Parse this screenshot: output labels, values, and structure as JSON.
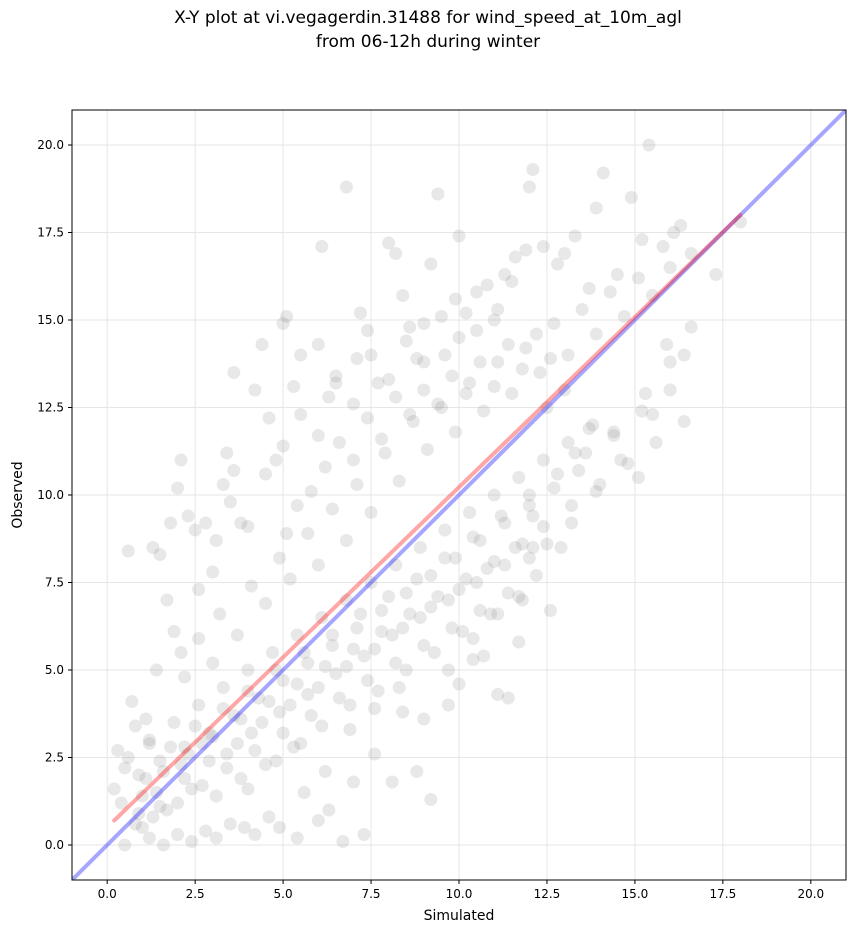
{
  "chart_data": {
    "type": "scatter",
    "title": "X-Y plot at vi.vegagerdin.31488 for wind_speed_at_10m_agl",
    "subtitle": "from 06-12h during winter",
    "xlabel": "Simulated",
    "ylabel": "Observed",
    "xlim": [
      -1.0,
      21.0
    ],
    "ylim": [
      -1.0,
      21.0
    ],
    "x_ticks": [
      0.0,
      2.5,
      5.0,
      7.5,
      10.0,
      12.5,
      15.0,
      17.5,
      20.0
    ],
    "y_ticks": [
      0.0,
      2.5,
      5.0,
      7.5,
      10.0,
      12.5,
      15.0,
      17.5,
      20.0
    ],
    "x_tick_labels": [
      "0.0",
      "2.5",
      "5.0",
      "7.5",
      "10.0",
      "12.5",
      "15.0",
      "17.5",
      "20.0"
    ],
    "y_tick_labels": [
      "0.0",
      "2.5",
      "5.0",
      "7.5",
      "10.0",
      "12.5",
      "15.0",
      "17.5",
      "20.0"
    ],
    "grid": true,
    "point_color": "#808080",
    "identity_line": {
      "from": [
        -1.0,
        -1.0
      ],
      "to": [
        21.0,
        21.0
      ],
      "color": "#0000ff"
    },
    "fit_line": {
      "from": [
        0.2,
        0.7
      ],
      "to": [
        18.0,
        18.0
      ],
      "color": "#ff0000"
    },
    "points": [
      [
        0.3,
        2.7
      ],
      [
        0.5,
        2.2
      ],
      [
        0.6,
        8.4
      ],
      [
        0.8,
        3.4
      ],
      [
        1.0,
        0.5
      ],
      [
        1.2,
        2.9
      ],
      [
        1.3,
        8.5
      ],
      [
        1.5,
        8.3
      ],
      [
        1.7,
        7.0
      ],
      [
        1.8,
        9.2
      ],
      [
        2.0,
        10.2
      ],
      [
        2.1,
        11.0
      ],
      [
        2.3,
        9.4
      ],
      [
        2.5,
        9.0
      ],
      [
        2.8,
        9.2
      ],
      [
        3.0,
        7.8
      ],
      [
        3.3,
        10.3
      ],
      [
        3.4,
        11.2
      ],
      [
        3.6,
        10.7
      ],
      [
        3.8,
        9.2
      ],
      [
        3.6,
        13.5
      ],
      [
        4.2,
        13.0
      ],
      [
        4.4,
        14.3
      ],
      [
        4.6,
        12.2
      ],
      [
        4.8,
        11.0
      ],
      [
        5.0,
        14.9
      ],
      [
        5.1,
        15.1
      ],
      [
        5.3,
        13.1
      ],
      [
        5.5,
        14.0
      ],
      [
        6.1,
        17.1
      ],
      [
        6.0,
        14.3
      ],
      [
        6.3,
        12.8
      ],
      [
        6.5,
        13.2
      ],
      [
        6.8,
        18.8
      ],
      [
        7.1,
        13.9
      ],
      [
        7.2,
        15.2
      ],
      [
        7.4,
        14.7
      ],
      [
        7.7,
        13.2
      ],
      [
        8.0,
        17.2
      ],
      [
        8.2,
        16.9
      ],
      [
        8.4,
        15.7
      ],
      [
        8.6,
        14.8
      ],
      [
        8.8,
        13.9
      ],
      [
        9.0,
        14.9
      ],
      [
        9.2,
        16.6
      ],
      [
        9.4,
        18.6
      ],
      [
        9.6,
        14.0
      ],
      [
        9.9,
        15.6
      ],
      [
        10.0,
        17.4
      ],
      [
        10.2,
        15.2
      ],
      [
        10.5,
        14.7
      ],
      [
        10.8,
        16.0
      ],
      [
        11.1,
        15.3
      ],
      [
        11.3,
        16.3
      ],
      [
        11.6,
        16.8
      ],
      [
        11.9,
        17.0
      ],
      [
        12.0,
        18.8
      ],
      [
        12.1,
        19.3
      ],
      [
        12.4,
        17.1
      ],
      [
        12.8,
        16.6
      ],
      [
        13.0,
        16.9
      ],
      [
        13.3,
        17.4
      ],
      [
        13.7,
        15.9
      ],
      [
        13.9,
        18.2
      ],
      [
        14.1,
        19.2
      ],
      [
        14.5,
        16.3
      ],
      [
        14.9,
        18.5
      ],
      [
        15.2,
        17.3
      ],
      [
        15.4,
        20.0
      ],
      [
        15.8,
        17.1
      ],
      [
        16.1,
        17.5
      ],
      [
        16.3,
        17.7
      ],
      [
        16.6,
        16.9
      ],
      [
        17.3,
        16.3
      ],
      [
        18.0,
        17.8
      ],
      [
        16.4,
        14.0
      ],
      [
        16.6,
        14.8
      ],
      [
        15.9,
        14.3
      ],
      [
        15.5,
        12.3
      ],
      [
        15.1,
        10.5
      ],
      [
        14.4,
        11.7
      ],
      [
        13.7,
        11.9
      ],
      [
        13.3,
        11.2
      ],
      [
        12.9,
        8.5
      ],
      [
        12.6,
        6.7
      ],
      [
        12.0,
        8.2
      ],
      [
        12.1,
        9.4
      ],
      [
        11.7,
        5.8
      ],
      [
        11.4,
        4.2
      ],
      [
        11.1,
        4.3
      ],
      [
        10.7,
        5.4
      ],
      [
        10.4,
        5.3
      ],
      [
        10.0,
        4.6
      ],
      [
        9.7,
        4.0
      ],
      [
        9.2,
        1.3
      ],
      [
        8.8,
        2.1
      ],
      [
        8.4,
        3.8
      ],
      [
        8.1,
        1.8
      ],
      [
        7.6,
        2.6
      ],
      [
        7.3,
        0.3
      ],
      [
        7.0,
        1.8
      ],
      [
        6.7,
        0.1
      ],
      [
        6.3,
        1.0
      ],
      [
        6.0,
        0.7
      ],
      [
        5.6,
        1.5
      ],
      [
        5.4,
        0.2
      ],
      [
        4.9,
        0.5
      ],
      [
        4.6,
        0.8
      ],
      [
        4.2,
        0.3
      ],
      [
        3.9,
        0.5
      ],
      [
        3.5,
        0.6
      ],
      [
        3.1,
        0.2
      ],
      [
        2.8,
        0.4
      ],
      [
        2.4,
        0.1
      ],
      [
        2.0,
        0.3
      ],
      [
        1.6,
        0.0
      ],
      [
        1.2,
        0.2
      ],
      [
        0.8,
        0.6
      ],
      [
        0.5,
        0.0
      ],
      [
        0.2,
        1.6
      ],
      [
        0.7,
        4.1
      ],
      [
        1.1,
        3.6
      ],
      [
        1.4,
        5.0
      ],
      [
        1.9,
        6.1
      ],
      [
        2.2,
        4.8
      ],
      [
        2.6,
        5.9
      ],
      [
        3.0,
        5.2
      ],
      [
        3.2,
        6.6
      ],
      [
        3.7,
        6.0
      ],
      [
        4.1,
        7.4
      ],
      [
        4.5,
        6.9
      ],
      [
        4.9,
        8.2
      ],
      [
        5.2,
        7.6
      ],
      [
        5.7,
        8.9
      ],
      [
        6.0,
        8.0
      ],
      [
        6.4,
        9.6
      ],
      [
        6.8,
        8.7
      ],
      [
        7.1,
        10.3
      ],
      [
        7.5,
        9.5
      ],
      [
        7.9,
        11.2
      ],
      [
        8.3,
        10.4
      ],
      [
        8.7,
        12.1
      ],
      [
        9.1,
        11.3
      ],
      [
        9.5,
        12.5
      ],
      [
        9.9,
        11.8
      ],
      [
        10.3,
        13.2
      ],
      [
        10.7,
        12.4
      ],
      [
        11.1,
        13.8
      ],
      [
        11.5,
        12.9
      ],
      [
        11.9,
        14.2
      ],
      [
        12.3,
        13.5
      ],
      [
        12.7,
        14.9
      ],
      [
        13.1,
        14.0
      ],
      [
        13.5,
        15.3
      ],
      [
        13.9,
        14.6
      ],
      [
        14.3,
        15.8
      ],
      [
        14.7,
        15.1
      ],
      [
        15.1,
        16.2
      ],
      [
        15.5,
        15.7
      ],
      [
        16.0,
        16.5
      ],
      [
        1.0,
        1.4
      ],
      [
        1.3,
        0.8
      ],
      [
        1.6,
        2.1
      ],
      [
        2.0,
        1.2
      ],
      [
        2.3,
        2.6
      ],
      [
        2.7,
        1.7
      ],
      [
        3.0,
        3.1
      ],
      [
        3.4,
        2.2
      ],
      [
        3.8,
        3.6
      ],
      [
        4.2,
        2.7
      ],
      [
        4.6,
        4.1
      ],
      [
        5.0,
        3.2
      ],
      [
        5.4,
        4.6
      ],
      [
        5.8,
        3.7
      ],
      [
        6.2,
        5.1
      ],
      [
        6.6,
        4.2
      ],
      [
        7.0,
        5.6
      ],
      [
        7.4,
        4.7
      ],
      [
        7.8,
        6.1
      ],
      [
        8.2,
        5.2
      ],
      [
        8.6,
        6.6
      ],
      [
        9.0,
        5.7
      ],
      [
        9.4,
        7.1
      ],
      [
        9.8,
        6.2
      ],
      [
        10.2,
        7.6
      ],
      [
        10.6,
        6.7
      ],
      [
        11.0,
        8.1
      ],
      [
        11.4,
        7.2
      ],
      [
        11.8,
        8.6
      ],
      [
        12.2,
        7.7
      ],
      [
        0.9,
        2.0
      ],
      [
        1.5,
        1.1
      ],
      [
        1.8,
        2.8
      ],
      [
        2.2,
        1.9
      ],
      [
        2.5,
        3.4
      ],
      [
        2.9,
        2.4
      ],
      [
        3.3,
        3.9
      ],
      [
        3.7,
        2.9
      ],
      [
        4.0,
        4.4
      ],
      [
        4.4,
        3.5
      ],
      [
        4.8,
        5.0
      ],
      [
        5.2,
        4.0
      ],
      [
        5.6,
        5.5
      ],
      [
        6.0,
        4.5
      ],
      [
        6.4,
        6.0
      ],
      [
        6.8,
        5.1
      ],
      [
        7.2,
        6.6
      ],
      [
        7.6,
        5.6
      ],
      [
        8.0,
        7.1
      ],
      [
        8.4,
        6.2
      ],
      [
        8.8,
        7.6
      ],
      [
        9.2,
        6.8
      ],
      [
        9.6,
        8.2
      ],
      [
        10.0,
        7.3
      ],
      [
        10.4,
        8.8
      ],
      [
        10.8,
        7.9
      ],
      [
        11.2,
        9.4
      ],
      [
        11.6,
        8.5
      ],
      [
        12.0,
        10.0
      ],
      [
        12.4,
        9.1
      ],
      [
        12.8,
        10.6
      ],
      [
        13.2,
        9.7
      ],
      [
        13.6,
        11.2
      ],
      [
        14.0,
        10.3
      ],
      [
        14.4,
        11.8
      ],
      [
        14.8,
        10.9
      ],
      [
        15.2,
        12.4
      ],
      [
        15.6,
        11.5
      ],
      [
        16.0,
        13.0
      ],
      [
        16.4,
        12.1
      ],
      [
        2.1,
        5.5
      ],
      [
        2.6,
        7.3
      ],
      [
        3.1,
        8.7
      ],
      [
        3.5,
        9.8
      ],
      [
        4.0,
        9.1
      ],
      [
        4.5,
        10.6
      ],
      [
        5.0,
        11.4
      ],
      [
        5.5,
        12.3
      ],
      [
        6.0,
        11.7
      ],
      [
        6.5,
        13.4
      ],
      [
        7.0,
        12.6
      ],
      [
        7.5,
        14.0
      ],
      [
        8.0,
        13.3
      ],
      [
        8.5,
        14.4
      ],
      [
        9.0,
        13.8
      ],
      [
        9.5,
        15.1
      ],
      [
        10.0,
        14.5
      ],
      [
        10.5,
        15.8
      ],
      [
        11.0,
        15.0
      ],
      [
        11.5,
        16.1
      ],
      [
        4.0,
        1.6
      ],
      [
        4.8,
        2.4
      ],
      [
        5.5,
        2.9
      ],
      [
        6.2,
        2.1
      ],
      [
        6.9,
        3.3
      ],
      [
        7.6,
        3.9
      ],
      [
        8.3,
        4.5
      ],
      [
        9.0,
        3.6
      ],
      [
        9.7,
        5.0
      ],
      [
        10.4,
        5.9
      ],
      [
        11.1,
        6.6
      ],
      [
        11.8,
        7.0
      ],
      [
        12.5,
        8.6
      ],
      [
        13.2,
        9.2
      ],
      [
        13.9,
        10.1
      ],
      [
        14.6,
        11.0
      ],
      [
        15.3,
        12.9
      ],
      [
        16.0,
        13.8
      ],
      [
        13.0,
        13.0
      ],
      [
        12.5,
        12.5
      ],
      [
        1.1,
        1.9
      ],
      [
        1.4,
        1.5
      ],
      [
        1.7,
        1.0
      ],
      [
        2.1,
        2.3
      ],
      [
        2.4,
        1.6
      ],
      [
        2.7,
        2.9
      ],
      [
        3.1,
        1.4
      ],
      [
        3.4,
        2.6
      ],
      [
        3.8,
        1.9
      ],
      [
        4.1,
        3.2
      ],
      [
        4.5,
        2.3
      ],
      [
        4.9,
        3.8
      ],
      [
        5.3,
        2.8
      ],
      [
        5.7,
        4.3
      ],
      [
        6.1,
        3.4
      ],
      [
        6.5,
        4.9
      ],
      [
        6.9,
        4.0
      ],
      [
        7.3,
        5.4
      ],
      [
        7.7,
        4.4
      ],
      [
        8.1,
        6.0
      ],
      [
        8.5,
        5.0
      ],
      [
        8.9,
        6.5
      ],
      [
        9.3,
        5.5
      ],
      [
        9.7,
        7.0
      ],
      [
        10.1,
        6.1
      ],
      [
        10.5,
        7.5
      ],
      [
        10.9,
        6.6
      ],
      [
        11.3,
        8.0
      ],
      [
        11.7,
        7.1
      ],
      [
        12.1,
        8.5
      ],
      [
        0.4,
        1.2
      ],
      [
        0.6,
        2.5
      ],
      [
        0.9,
        0.9
      ],
      [
        1.2,
        3.0
      ],
      [
        1.5,
        2.4
      ],
      [
        1.9,
        3.5
      ],
      [
        2.2,
        2.8
      ],
      [
        2.6,
        4.0
      ],
      [
        2.9,
        3.2
      ],
      [
        3.3,
        4.5
      ],
      [
        3.6,
        3.7
      ],
      [
        4.0,
        5.0
      ],
      [
        4.3,
        4.2
      ],
      [
        4.7,
        5.5
      ],
      [
        5.0,
        4.7
      ],
      [
        5.4,
        6.0
      ],
      [
        5.7,
        5.2
      ],
      [
        6.1,
        6.5
      ],
      [
        6.4,
        5.7
      ],
      [
        6.8,
        7.0
      ],
      [
        7.1,
        6.2
      ],
      [
        7.5,
        7.5
      ],
      [
        7.8,
        6.7
      ],
      [
        8.2,
        8.0
      ],
      [
        8.5,
        7.2
      ],
      [
        8.9,
        8.5
      ],
      [
        9.2,
        7.7
      ],
      [
        9.6,
        9.0
      ],
      [
        9.9,
        8.2
      ],
      [
        10.3,
        9.5
      ],
      [
        10.6,
        8.7
      ],
      [
        11.0,
        10.0
      ],
      [
        11.3,
        9.2
      ],
      [
        11.7,
        10.5
      ],
      [
        12.0,
        9.7
      ],
      [
        12.4,
        11.0
      ],
      [
        12.7,
        10.2
      ],
      [
        13.1,
        11.5
      ],
      [
        13.4,
        10.7
      ],
      [
        13.8,
        12.0
      ],
      [
        5.1,
        8.9
      ],
      [
        5.4,
        9.7
      ],
      [
        5.8,
        10.1
      ],
      [
        6.2,
        10.8
      ],
      [
        6.6,
        11.5
      ],
      [
        7.0,
        11.0
      ],
      [
        7.4,
        12.2
      ],
      [
        7.8,
        11.6
      ],
      [
        8.2,
        12.8
      ],
      [
        8.6,
        12.3
      ],
      [
        9.0,
        13.0
      ],
      [
        9.4,
        12.6
      ],
      [
        9.8,
        13.4
      ],
      [
        10.2,
        12.9
      ],
      [
        10.6,
        13.8
      ],
      [
        11.0,
        13.1
      ],
      [
        11.4,
        14.3
      ],
      [
        11.8,
        13.6
      ],
      [
        12.2,
        14.6
      ],
      [
        12.6,
        13.9
      ]
    ]
  }
}
